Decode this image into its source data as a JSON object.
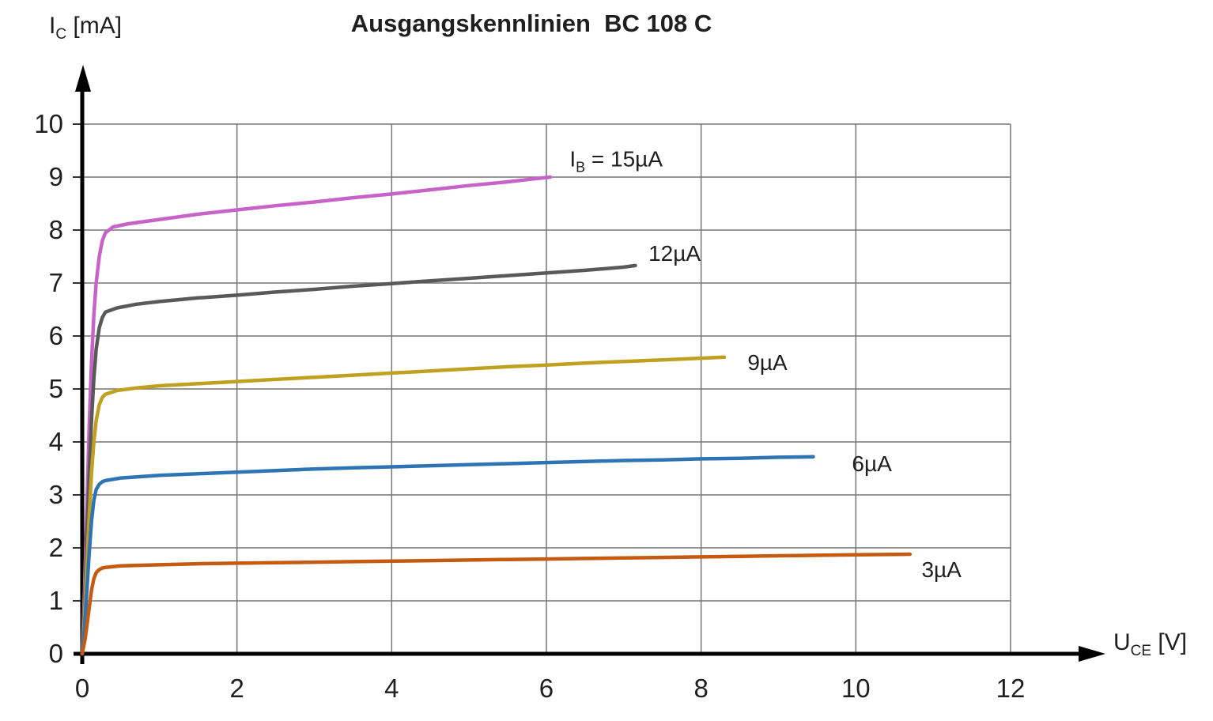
{
  "title": "Ausgangskennlinien  BC 108 C",
  "y_axis_title": {
    "pre": "I",
    "sub": "C",
    "post": " [mA]"
  },
  "x_axis_title": {
    "pre": "U",
    "sub": "CE",
    "post": " [V]"
  },
  "chart_data": {
    "type": "line",
    "title": "Ausgangskennlinien  BC 108 C",
    "xlabel": "U_CE [V]",
    "ylabel": "I_C [mA]",
    "xlim": [
      0,
      13.2
    ],
    "ylim": [
      0,
      11
    ],
    "x_ticks": [
      0,
      2,
      4,
      6,
      8,
      10,
      12
    ],
    "y_ticks": [
      0,
      1,
      2,
      3,
      4,
      5,
      6,
      7,
      8,
      9,
      10
    ],
    "grid": {
      "visible": true,
      "color": "#757575",
      "x_lines": [
        2,
        4,
        6,
        8,
        10,
        12
      ],
      "y_lines": [
        1,
        2,
        3,
        4,
        5,
        6,
        7,
        8,
        9,
        10
      ]
    },
    "legend_position": "inline-labels-at-curve-ends",
    "axis_color": "#000000",
    "series": [
      {
        "slug": "ib-15ua",
        "name": "IB = 15µA",
        "label_pre": "I",
        "label_sub": "B",
        "label_post": " = 15µA",
        "color": "#c763c8",
        "label_at": [
          6.3,
          9.2
        ],
        "points": [
          [
            0,
            0
          ],
          [
            0.03,
            1.2
          ],
          [
            0.06,
            2.8
          ],
          [
            0.09,
            4.3
          ],
          [
            0.12,
            5.5
          ],
          [
            0.15,
            6.4
          ],
          [
            0.18,
            7.0
          ],
          [
            0.22,
            7.5
          ],
          [
            0.26,
            7.8
          ],
          [
            0.3,
            7.95
          ],
          [
            0.4,
            8.06
          ],
          [
            0.6,
            8.12
          ],
          [
            1,
            8.2
          ],
          [
            1.5,
            8.3
          ],
          [
            2,
            8.38
          ],
          [
            2.5,
            8.46
          ],
          [
            3,
            8.53
          ],
          [
            3.5,
            8.61
          ],
          [
            4,
            8.68
          ],
          [
            4.5,
            8.76
          ],
          [
            5,
            8.84
          ],
          [
            5.5,
            8.91
          ],
          [
            5.8,
            8.96
          ],
          [
            6.05,
            9.0
          ]
        ]
      },
      {
        "slug": "ib-12ua",
        "name": "IB = 12µA",
        "label_pre": "",
        "label_sub": "",
        "label_post": "12µA",
        "color": "#595959",
        "label_at": [
          7.32,
          7.42
        ],
        "points": [
          [
            0,
            0
          ],
          [
            0.03,
            0.9
          ],
          [
            0.06,
            2.2
          ],
          [
            0.09,
            3.4
          ],
          [
            0.12,
            4.4
          ],
          [
            0.15,
            5.2
          ],
          [
            0.18,
            5.75
          ],
          [
            0.22,
            6.15
          ],
          [
            0.26,
            6.35
          ],
          [
            0.3,
            6.45
          ],
          [
            0.45,
            6.53
          ],
          [
            0.7,
            6.6
          ],
          [
            1,
            6.65
          ],
          [
            1.5,
            6.72
          ],
          [
            2,
            6.77
          ],
          [
            2.5,
            6.83
          ],
          [
            3,
            6.88
          ],
          [
            3.5,
            6.94
          ],
          [
            4,
            6.99
          ],
          [
            4.5,
            7.04
          ],
          [
            5,
            7.09
          ],
          [
            5.5,
            7.14
          ],
          [
            6,
            7.19
          ],
          [
            6.5,
            7.24
          ],
          [
            7,
            7.3
          ],
          [
            7.15,
            7.33
          ]
        ]
      },
      {
        "slug": "ib-9ua",
        "name": "IB = 9µA",
        "label_pre": "",
        "label_sub": "",
        "label_post": "9µA",
        "color": "#bfa020",
        "label_at": [
          8.6,
          5.36
        ],
        "points": [
          [
            0,
            0
          ],
          [
            0.03,
            0.7
          ],
          [
            0.06,
            1.7
          ],
          [
            0.09,
            2.6
          ],
          [
            0.12,
            3.4
          ],
          [
            0.15,
            4.0
          ],
          [
            0.18,
            4.4
          ],
          [
            0.22,
            4.7
          ],
          [
            0.26,
            4.84
          ],
          [
            0.3,
            4.9
          ],
          [
            0.45,
            4.97
          ],
          [
            0.7,
            5.02
          ],
          [
            1,
            5.06
          ],
          [
            1.5,
            5.1
          ],
          [
            2,
            5.14
          ],
          [
            2.5,
            5.18
          ],
          [
            3,
            5.22
          ],
          [
            3.5,
            5.26
          ],
          [
            4,
            5.3
          ],
          [
            4.5,
            5.34
          ],
          [
            5,
            5.38
          ],
          [
            5.5,
            5.42
          ],
          [
            6,
            5.45
          ],
          [
            6.5,
            5.49
          ],
          [
            7,
            5.52
          ],
          [
            7.5,
            5.55
          ],
          [
            8,
            5.58
          ],
          [
            8.3,
            5.6
          ]
        ]
      },
      {
        "slug": "ib-6ua",
        "name": "IB = 6µA",
        "label_pre": "",
        "label_sub": "",
        "label_post": "6µA",
        "color": "#2e74b5",
        "label_at": [
          9.95,
          3.45
        ],
        "points": [
          [
            0,
            0
          ],
          [
            0.03,
            0.5
          ],
          [
            0.06,
            1.2
          ],
          [
            0.09,
            1.9
          ],
          [
            0.12,
            2.5
          ],
          [
            0.15,
            2.9
          ],
          [
            0.18,
            3.1
          ],
          [
            0.22,
            3.2
          ],
          [
            0.26,
            3.25
          ],
          [
            0.3,
            3.27
          ],
          [
            0.5,
            3.32
          ],
          [
            1,
            3.37
          ],
          [
            1.5,
            3.4
          ],
          [
            2,
            3.43
          ],
          [
            2.5,
            3.46
          ],
          [
            3,
            3.49
          ],
          [
            3.5,
            3.51
          ],
          [
            4,
            3.53
          ],
          [
            4.5,
            3.55
          ],
          [
            5,
            3.57
          ],
          [
            5.5,
            3.59
          ],
          [
            6,
            3.61
          ],
          [
            6.5,
            3.63
          ],
          [
            7,
            3.65
          ],
          [
            7.5,
            3.66
          ],
          [
            8,
            3.68
          ],
          [
            8.5,
            3.69
          ],
          [
            9,
            3.71
          ],
          [
            9.45,
            3.72
          ]
        ]
      },
      {
        "slug": "ib-3ua",
        "name": "IB = 3µA",
        "label_pre": "",
        "label_sub": "",
        "label_post": "3µA",
        "color": "#c55a11",
        "label_at": [
          10.85,
          1.45
        ],
        "points": [
          [
            0,
            0
          ],
          [
            0.04,
            0.3
          ],
          [
            0.08,
            0.75
          ],
          [
            0.12,
            1.2
          ],
          [
            0.15,
            1.42
          ],
          [
            0.18,
            1.53
          ],
          [
            0.22,
            1.59
          ],
          [
            0.26,
            1.62
          ],
          [
            0.3,
            1.63
          ],
          [
            0.5,
            1.66
          ],
          [
            1,
            1.68
          ],
          [
            1.5,
            1.7
          ],
          [
            2,
            1.71
          ],
          [
            2.5,
            1.72
          ],
          [
            3,
            1.73
          ],
          [
            3.5,
            1.74
          ],
          [
            4,
            1.75
          ],
          [
            4.5,
            1.76
          ],
          [
            5,
            1.77
          ],
          [
            5.5,
            1.78
          ],
          [
            6,
            1.79
          ],
          [
            6.5,
            1.8
          ],
          [
            7,
            1.81
          ],
          [
            7.5,
            1.82
          ],
          [
            8,
            1.83
          ],
          [
            8.5,
            1.84
          ],
          [
            9,
            1.85
          ],
          [
            9.5,
            1.86
          ],
          [
            10,
            1.87
          ],
          [
            10.7,
            1.88
          ]
        ]
      }
    ]
  }
}
